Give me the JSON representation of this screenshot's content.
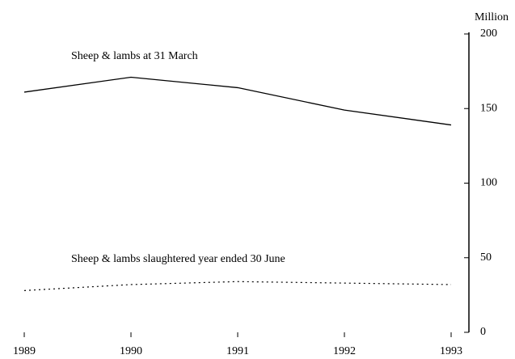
{
  "chart_data": {
    "type": "line",
    "y_label": "Million",
    "x": [
      1989,
      1990,
      1991,
      1992,
      1993
    ],
    "xlim": [
      1989,
      1993
    ],
    "xticks": [
      1989,
      1990,
      1991,
      1992,
      1993
    ],
    "ylim": [
      0,
      200
    ],
    "yticks": [
      0,
      50,
      100,
      150,
      200
    ],
    "grid": false,
    "series": [
      {
        "name": "Sheep & lambs at 31 March",
        "color": "#000000",
        "style": "solid",
        "values": [
          161,
          171,
          164,
          149,
          139
        ]
      },
      {
        "name": "Sheep & lambs slaughtered year ended 30 June",
        "color": "#000000",
        "style": "dotted",
        "values": [
          28,
          32,
          34,
          33,
          32
        ]
      }
    ]
  }
}
